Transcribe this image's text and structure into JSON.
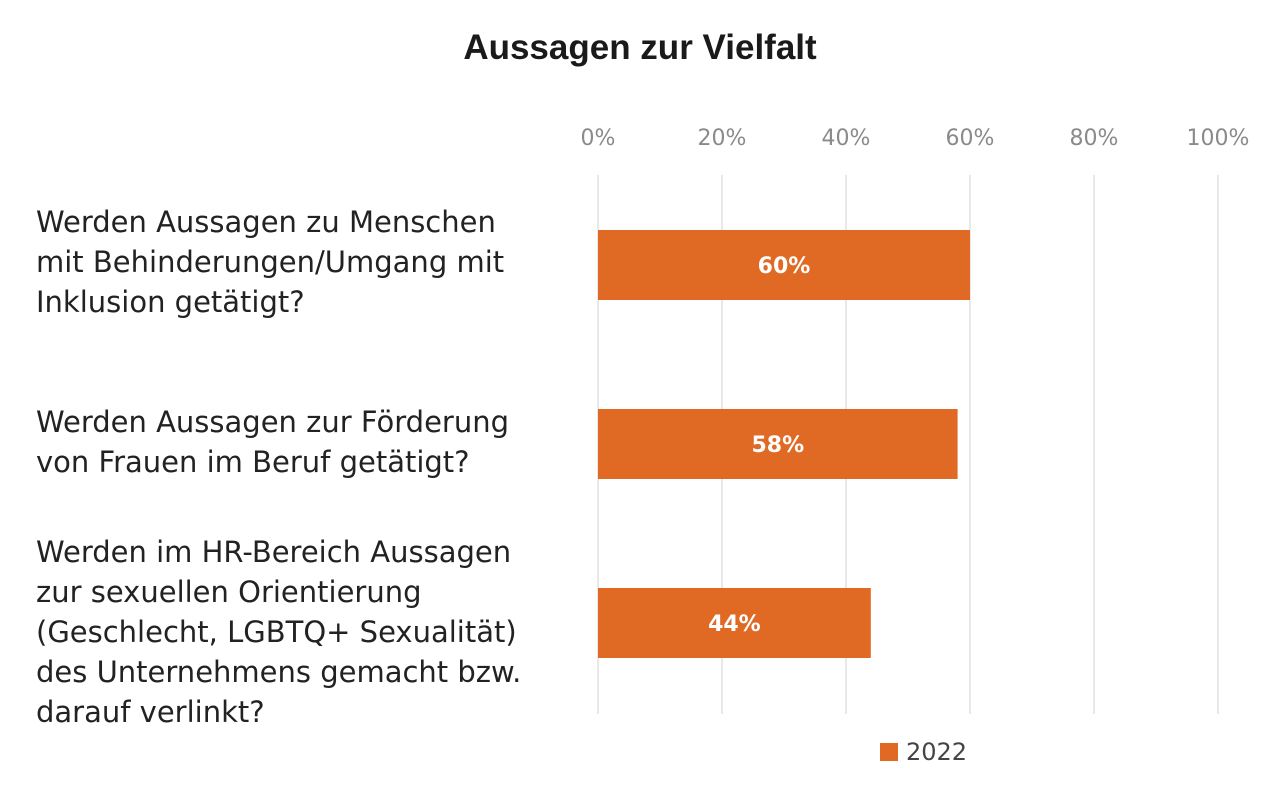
{
  "chart_data": {
    "type": "bar",
    "orientation": "horizontal",
    "title": "Aussagen zur Vielfalt",
    "categories": [
      "Werden Aussagen zu Menschen\nmit Behinderungen/Umgang mit\nInklusion getätigt?",
      "Werden Aussagen zur Förderung\nvon Frauen im Beruf getätigt?",
      "Werden im HR-Bereich Aussagen\nzur sexuellen Orientierung\n(Geschlecht, LGBTQ+ Sexualität)\ndes Unternehmens gemacht bzw.\ndarauf verlinkt?"
    ],
    "series": [
      {
        "name": "2022",
        "values": [
          60,
          58,
          44
        ],
        "data_labels": [
          "60%",
          "58%",
          "44%"
        ],
        "color": "#e06a24"
      }
    ],
    "xlim": [
      0,
      100
    ],
    "x_ticks": [
      "0%",
      "20%",
      "40%",
      "60%",
      "80%",
      "100%"
    ],
    "x_tick_values": [
      0,
      20,
      40,
      60,
      80,
      100
    ],
    "x_axis_position": "top",
    "grid": true,
    "legend": "bottom"
  }
}
